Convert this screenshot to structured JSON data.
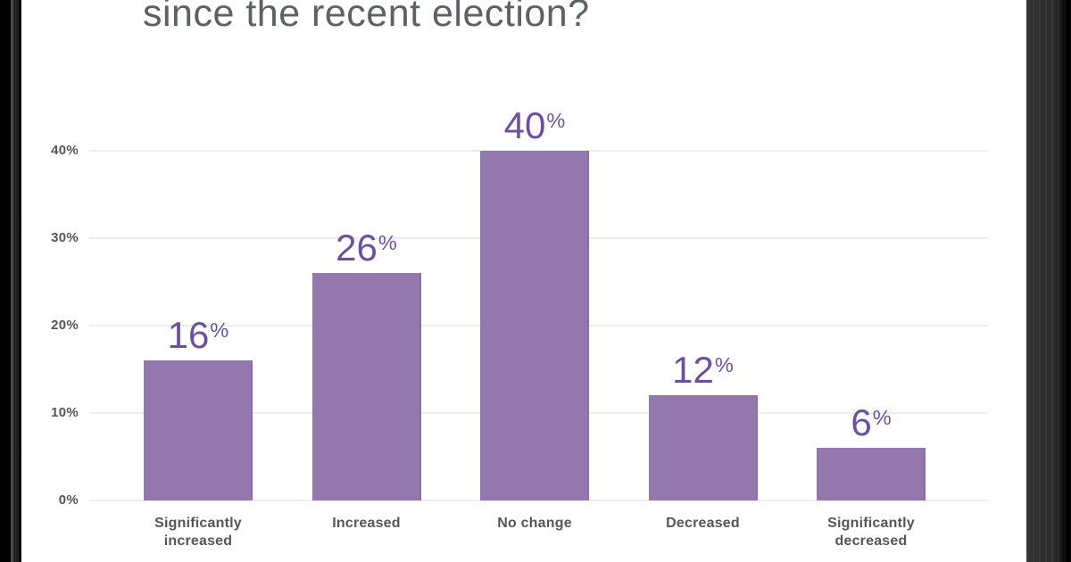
{
  "title": {
    "text": "since the recent election?"
  },
  "chart_data": {
    "type": "bar",
    "title": "since the recent election?",
    "title_note": "question text cropped at top of image; only last line visible",
    "categories": [
      "Significantly increased",
      "Increased",
      "No change",
      "Decreased",
      "Significantly decreased"
    ],
    "values": [
      16,
      26,
      40,
      12,
      6
    ],
    "data_labels": [
      "16%",
      "26%",
      "40%",
      "12%",
      "6%"
    ],
    "xlabel": "",
    "ylabel": "",
    "yticks": [
      0,
      10,
      20,
      30,
      40
    ],
    "ytick_labels": [
      "0%",
      "10%",
      "20%",
      "30%",
      "40%"
    ],
    "ylim": [
      0,
      44
    ],
    "grid": "horizontal",
    "legend": "none",
    "bar_color": "#9278ad",
    "value_label_color": "#6d4f9f",
    "axis_label_color": "#54575a",
    "title_color": "#5c6164",
    "gridline_color": "#ededed"
  }
}
